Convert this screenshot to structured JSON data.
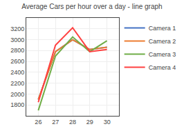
{
  "chart_data": {
    "type": "line",
    "title": "Average Cars per hour over a day - line graph",
    "x": [
      26,
      27,
      28,
      29,
      30
    ],
    "series": [
      {
        "name": "Camera 1",
        "color": "#4472C4",
        "values": [
          1900,
          2780,
          3000,
          2820,
          2860
        ]
      },
      {
        "name": "Camera 2",
        "color": "#ED7D31",
        "values": [
          1900,
          2780,
          3000,
          2820,
          2860
        ]
      },
      {
        "name": "Camera 3",
        "color": "#70AD47",
        "values": [
          1700,
          2700,
          3050,
          2780,
          2980
        ]
      },
      {
        "name": "Camera 4",
        "color": "#FF4040",
        "values": [
          1850,
          2900,
          3220,
          2780,
          2820
        ]
      }
    ],
    "xlim": [
      25.3,
      30.7
    ],
    "xticks": [
      26,
      27,
      28,
      29,
      30
    ],
    "ylim": [
      1600,
      3400
    ],
    "yticks": [
      1800,
      2000,
      2200,
      2400,
      2600,
      2800,
      3000,
      3200
    ],
    "grid": true,
    "legend": "upper right"
  }
}
